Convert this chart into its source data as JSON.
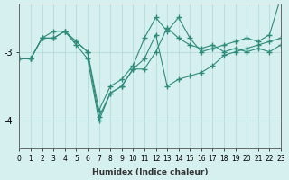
{
  "xlabel": "Humidex (Indice chaleur)",
  "x": [
    0,
    1,
    2,
    3,
    4,
    5,
    6,
    7,
    8,
    9,
    10,
    11,
    12,
    13,
    14,
    15,
    16,
    17,
    18,
    19,
    20,
    21,
    22,
    23
  ],
  "series1": [
    -3.1,
    -3.1,
    -2.8,
    -2.8,
    -2.7,
    -2.85,
    -3.0,
    -3.95,
    -3.6,
    -3.5,
    -3.25,
    -3.25,
    -3.0,
    -2.65,
    -2.8,
    -2.9,
    -2.95,
    -2.9,
    -3.0,
    -2.95,
    -3.0,
    -2.95,
    -3.0,
    -2.9
  ],
  "series2": [
    -3.1,
    -3.1,
    -2.8,
    -2.8,
    -2.7,
    -2.9,
    -3.1,
    -4.0,
    -3.6,
    -3.5,
    -3.25,
    -3.1,
    -2.75,
    -3.5,
    -3.4,
    -3.35,
    -3.3,
    -3.2,
    -3.05,
    -3.0,
    -2.95,
    -2.9,
    -2.85,
    -2.8
  ],
  "series3": [
    -3.1,
    -3.1,
    -2.8,
    -2.7,
    -2.7,
    -2.85,
    -3.0,
    -3.85,
    -3.5,
    -3.4,
    -3.2,
    -2.8,
    -2.5,
    -2.7,
    -2.5,
    -2.8,
    -3.0,
    -2.95,
    -2.9,
    -2.85,
    -2.8,
    -2.85,
    -2.75,
    -2.2
  ],
  "line_color": "#2e8b7a",
  "bg_color": "#d6f0f0",
  "grid_color": "#b0d8d8",
  "ylim": [
    -4.4,
    -2.3
  ],
  "yticks": [
    -4,
    -3
  ],
  "xlim": [
    0,
    23
  ]
}
